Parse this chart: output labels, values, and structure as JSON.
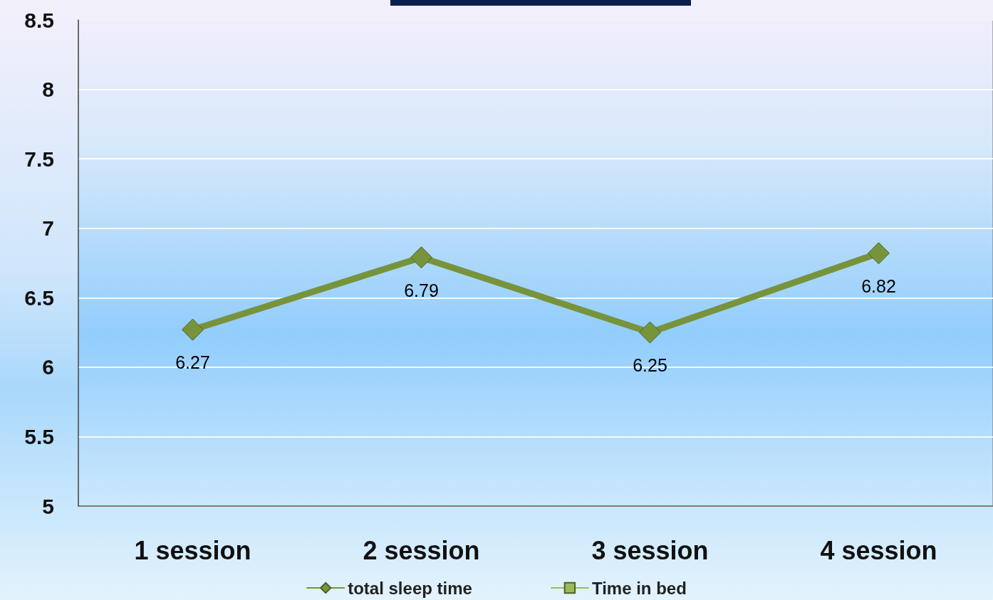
{
  "chart_data": {
    "type": "line",
    "categories": [
      "1 session",
      "2 session",
      "3 session",
      "4 session"
    ],
    "series": [
      {
        "name": "total sleep time",
        "color": "#77933c",
        "values": [
          6.27,
          6.79,
          6.25,
          6.82
        ],
        "marker": "diamond"
      },
      {
        "name": "Time in bed",
        "color": "#9bbb59",
        "values": [
          null,
          null,
          null,
          null
        ],
        "marker": "square"
      }
    ],
    "ylim": [
      5,
      8.5
    ],
    "yticks": [
      5,
      5.5,
      6,
      6.5,
      7,
      7.5,
      8,
      8.5
    ],
    "grid": "y",
    "legend": "bottom",
    "data_labels": true
  }
}
